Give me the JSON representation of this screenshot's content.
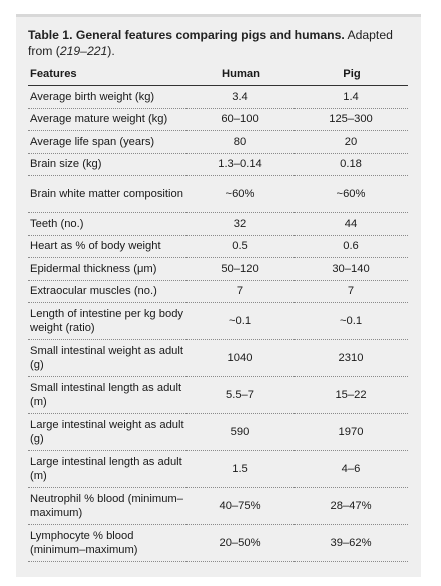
{
  "caption": {
    "label": "Table 1.",
    "title": "General features comparing pigs and humans.",
    "source_prefix": "Adapted from (",
    "source_refs": "219–221",
    "source_suffix": ")."
  },
  "headers": {
    "feature": "Features",
    "human": "Human",
    "pig": "Pig"
  },
  "rows": [
    {
      "feature": "Average birth weight (kg)",
      "human": "3.4",
      "pig": "1.4"
    },
    {
      "feature": "Average mature weight (kg)",
      "human": "60–100",
      "pig": "125–300"
    },
    {
      "feature": "Average life span (years)",
      "human": "80",
      "pig": "20"
    },
    {
      "feature": "Brain size (kg)",
      "human": "1.3–0.14",
      "pig": "0.18"
    },
    {
      "feature": "Brain white matter composition",
      "human": "~60%",
      "pig": "~60%"
    },
    {
      "feature": "Teeth (no.)",
      "human": "32",
      "pig": "44"
    },
    {
      "feature": "Heart as % of body weight",
      "human": "0.5",
      "pig": "0.6"
    },
    {
      "feature": "Epidermal thickness (μm)",
      "human": "50–120",
      "pig": "30–140"
    },
    {
      "feature": "Extraocular muscles (no.)",
      "human": "7",
      "pig": "7"
    },
    {
      "feature": "Length of intestine per kg body weight (ratio)",
      "human": "~0.1",
      "pig": "~0.1"
    },
    {
      "feature": "Small intestinal weight as adult (g)",
      "human": "1040",
      "pig": "2310"
    },
    {
      "feature": "Small intestinal length as adult (m)",
      "human": "5.5–7",
      "pig": "15–22"
    },
    {
      "feature": "Large intestinal weight as adult (g)",
      "human": "590",
      "pig": "1970"
    },
    {
      "feature": "Large intestinal length as adult (m)",
      "human": "1.5",
      "pig": "4–6"
    },
    {
      "feature": "Neutrophil % blood (minimum–maximum)",
      "human": "40–75%",
      "pig": "28–47%"
    },
    {
      "feature": "Lymphocyte % blood (minimum–maximum)",
      "human": "20–50%",
      "pig": "39–62%"
    }
  ]
}
